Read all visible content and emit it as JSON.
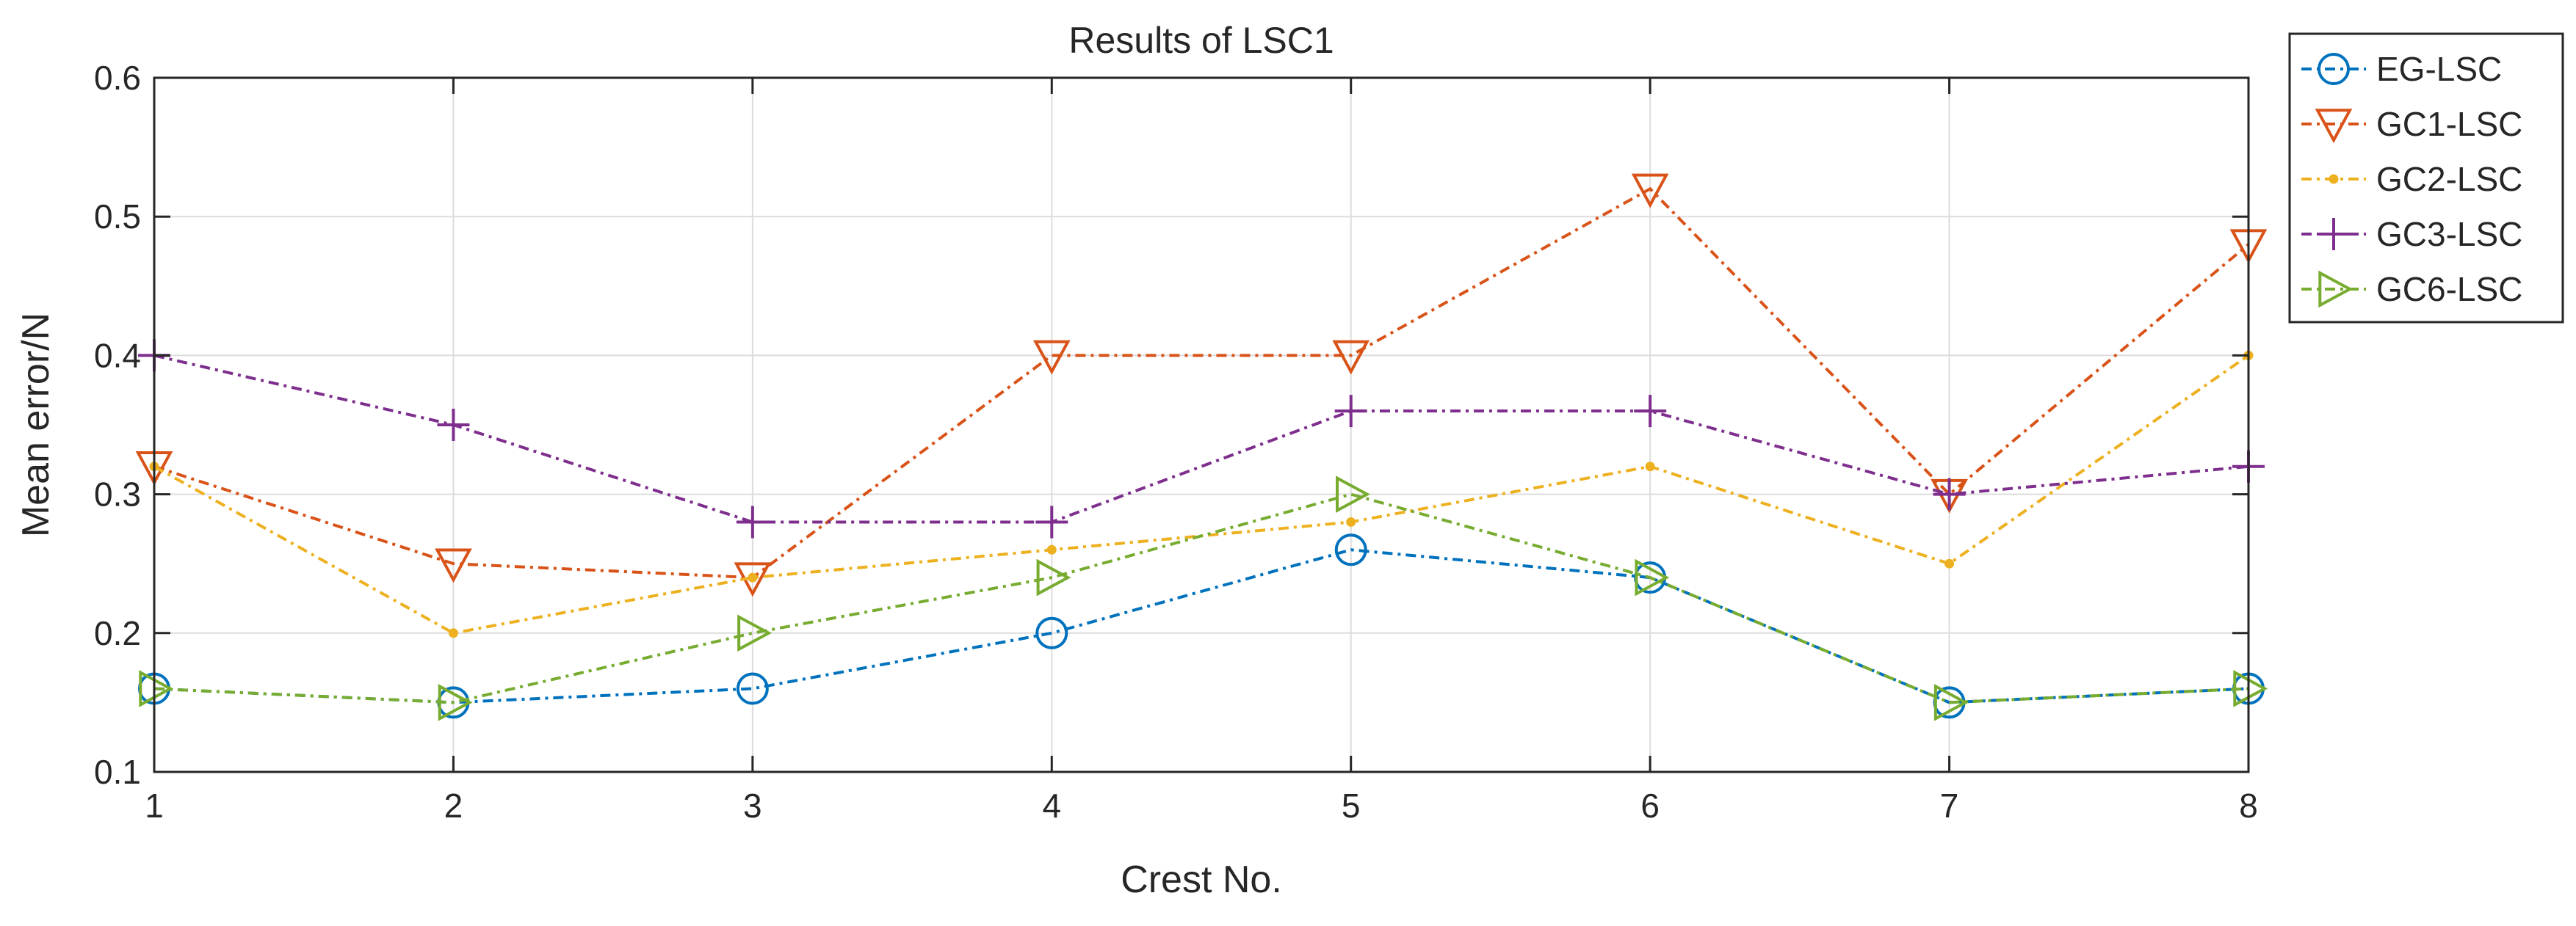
{
  "chart_data": {
    "type": "line",
    "title": "Results of LSC1",
    "xlabel": "Crest No.",
    "ylabel": "Mean error/N",
    "x": [
      1,
      2,
      3,
      4,
      5,
      6,
      7,
      8
    ],
    "xlim": [
      1,
      8
    ],
    "ylim": [
      0.1,
      0.6
    ],
    "xticks": [
      "1",
      "2",
      "3",
      "4",
      "5",
      "6",
      "7",
      "8"
    ],
    "yticks": [
      "0.1",
      "0.2",
      "0.3",
      "0.4",
      "0.5",
      "0.6"
    ],
    "grid": true,
    "legend_position": "outside-top-right",
    "series": [
      {
        "name": "EG-LSC",
        "color": "#0072BD",
        "marker": "circle",
        "values": [
          0.16,
          0.15,
          0.16,
          0.2,
          0.26,
          0.24,
          0.15,
          0.16
        ]
      },
      {
        "name": "GC1-LSC",
        "color": "#D95319",
        "marker": "triangle-down",
        "values": [
          0.32,
          0.25,
          0.24,
          0.4,
          0.4,
          0.52,
          0.3,
          0.48
        ]
      },
      {
        "name": "GC2-LSC",
        "color": "#EDB120",
        "marker": "dot",
        "values": [
          0.32,
          0.2,
          0.24,
          0.26,
          0.28,
          0.32,
          0.25,
          0.4
        ]
      },
      {
        "name": "GC3-LSC",
        "color": "#7E2F8E",
        "marker": "plus",
        "values": [
          0.4,
          0.35,
          0.28,
          0.28,
          0.36,
          0.36,
          0.3,
          0.32
        ]
      },
      {
        "name": "GC6-LSC",
        "color": "#77AC30",
        "marker": "triangle-right",
        "values": [
          0.16,
          0.15,
          0.2,
          0.24,
          0.3,
          0.24,
          0.15,
          0.16
        ]
      }
    ]
  }
}
